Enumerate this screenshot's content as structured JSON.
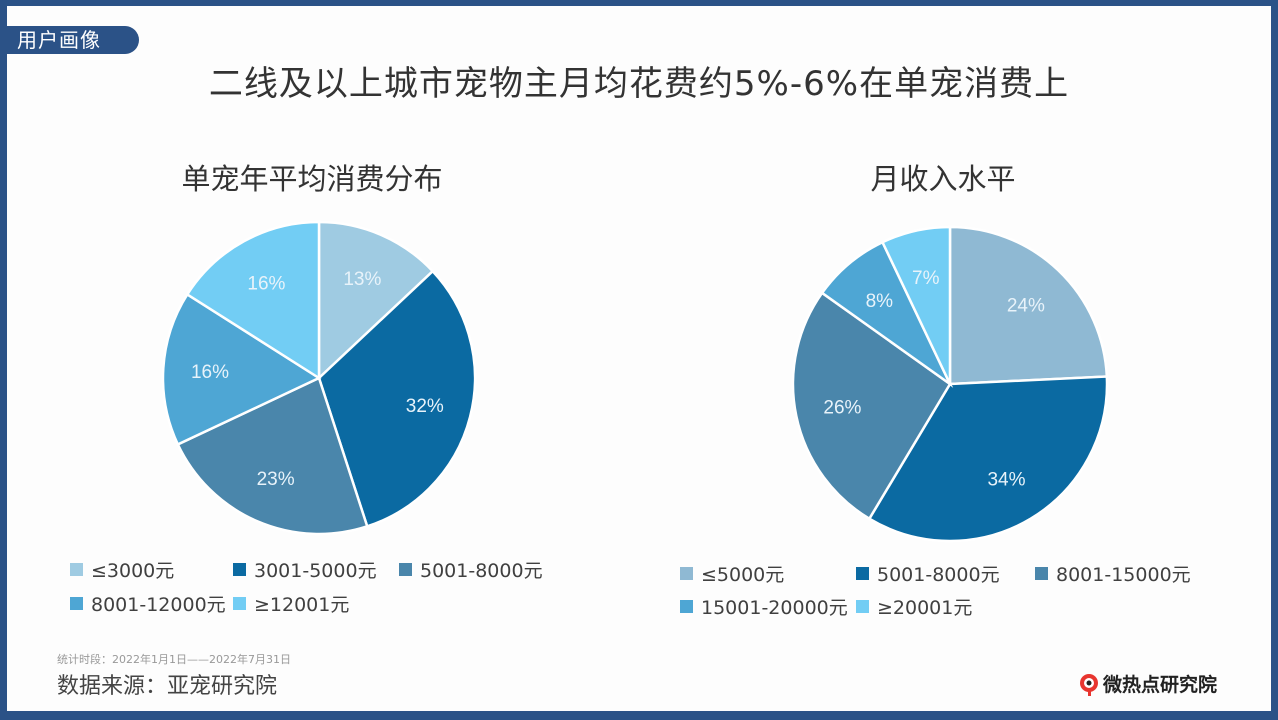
{
  "header": {
    "tag": "用户画像",
    "title": "二线及以上城市宠物主月均花费约5%-6%在单宠消费上"
  },
  "footer": {
    "period": "统计时段：2022年1月1日——2022年7月31日",
    "source": "数据来源：亚宠研究院",
    "logo_text": "微热点研究院"
  },
  "chart_data": [
    {
      "type": "pie",
      "title": "单宠年平均消费分布",
      "categories": [
        "≤3000元",
        "3001-5000元",
        "5001-8000元",
        "8001-12000元",
        "≥12001元"
      ],
      "values": [
        13,
        32,
        23,
        16,
        16
      ],
      "labels": [
        "13%",
        "32%",
        "23%",
        "16%",
        "16%"
      ],
      "colors": [
        "#9fcbe2",
        "#0b6aa2",
        "#4a86ab",
        "#4ea6d4",
        "#72cdf4"
      ],
      "legend_position": "bottom"
    },
    {
      "type": "pie",
      "title": "月收入水平",
      "categories": [
        "≤5000元",
        "5001-8000元",
        "8001-15000元",
        "15001-20000元",
        "≥20001元"
      ],
      "values": [
        24,
        34,
        26,
        8,
        7
      ],
      "labels": [
        "24%",
        "34%",
        "26%",
        "8%",
        "7%"
      ],
      "colors": [
        "#8fb9d3",
        "#0b6aa2",
        "#4a86ab",
        "#4ea6d4",
        "#72cdf4"
      ],
      "legend_position": "bottom"
    }
  ]
}
